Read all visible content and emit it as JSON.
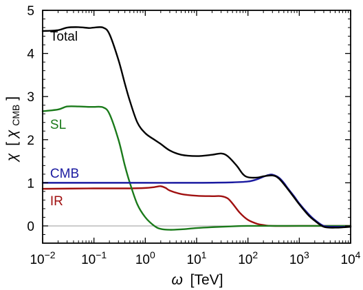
{
  "chart_data": {
    "type": "line",
    "title": "",
    "xlabel_symbol": "ω",
    "xlabel_unit": "[TeV]",
    "ylabel_symbol": "χ",
    "ylabel_unit_open": "[",
    "ylabel_unit_symbol": "χ",
    "ylabel_unit_sub": "CMB",
    "ylabel_unit_close": "]",
    "x_scale": "log",
    "xlim": [
      0.01,
      10000
    ],
    "ylim": [
      -0.4,
      5
    ],
    "x_ticks": [
      {
        "value": 0.01,
        "base": "10",
        "exp": "−2"
      },
      {
        "value": 0.1,
        "base": "10",
        "exp": "−1"
      },
      {
        "value": 1,
        "base": "10",
        "exp": "0"
      },
      {
        "value": 10,
        "base": "10",
        "exp": "1"
      },
      {
        "value": 100,
        "base": "10",
        "exp": "2"
      },
      {
        "value": 1000,
        "base": "10",
        "exp": "3"
      },
      {
        "value": 10000,
        "base": "10",
        "exp": "4"
      }
    ],
    "y_ticks": [
      {
        "value": 0,
        "label": "0"
      },
      {
        "value": 1,
        "label": "1"
      },
      {
        "value": 2,
        "label": "2"
      },
      {
        "value": 3,
        "label": "3"
      },
      {
        "value": 4,
        "label": "4"
      },
      {
        "value": 5,
        "label": "5"
      }
    ],
    "zero_line": true,
    "grid": false,
    "series": [
      {
        "name": "Total",
        "color": "#000000",
        "label_pos": {
          "x": 0.014,
          "y": 4.3
        },
        "x": [
          0.01,
          0.02,
          0.03,
          0.05,
          0.08,
          0.1,
          0.15,
          0.2,
          0.3,
          0.4,
          0.5,
          0.7,
          1,
          1.5,
          2,
          3,
          5,
          10,
          20,
          30,
          40,
          60,
          80,
          100,
          150,
          200,
          300,
          400,
          600,
          1000,
          1500,
          2000,
          3000,
          5000,
          10000
        ],
        "y": [
          4.52,
          4.54,
          4.6,
          4.61,
          4.59,
          4.6,
          4.6,
          4.45,
          3.85,
          3.3,
          2.9,
          2.4,
          2.15,
          2.0,
          1.9,
          1.75,
          1.65,
          1.62,
          1.65,
          1.68,
          1.62,
          1.4,
          1.2,
          1.13,
          1.12,
          1.15,
          1.17,
          1.1,
          0.85,
          0.5,
          0.25,
          0.12,
          -0.02,
          -0.04,
          -0.02
        ]
      },
      {
        "name": "SL",
        "color": "#1a7a1a",
        "label_pos": {
          "x": 0.014,
          "y": 2.25
        },
        "x": [
          0.01,
          0.02,
          0.03,
          0.05,
          0.08,
          0.1,
          0.15,
          0.2,
          0.3,
          0.4,
          0.5,
          0.7,
          1,
          1.5,
          2,
          3,
          5,
          10,
          20,
          50,
          100,
          1000,
          10000
        ],
        "y": [
          2.66,
          2.7,
          2.77,
          2.77,
          2.76,
          2.76,
          2.75,
          2.6,
          2.0,
          1.4,
          1.0,
          0.5,
          0.2,
          0.0,
          -0.07,
          -0.09,
          -0.08,
          -0.05,
          -0.03,
          -0.01,
          0.0,
          0.0,
          0.0
        ]
      },
      {
        "name": "CMB",
        "color": "#1a1aa0",
        "label_pos": {
          "x": 0.014,
          "y": 1.12
        },
        "x": [
          0.01,
          0.1,
          1,
          10,
          50,
          100,
          150,
          200,
          250,
          300,
          400,
          500,
          600,
          800,
          1000,
          1500,
          2000,
          3000,
          5000,
          10000
        ],
        "y": [
          1.0,
          1.0,
          1.0,
          1.0,
          1.01,
          1.03,
          1.08,
          1.14,
          1.18,
          1.19,
          1.12,
          1.0,
          0.87,
          0.68,
          0.52,
          0.28,
          0.14,
          0.0,
          -0.02,
          -0.02
        ]
      },
      {
        "name": "IR",
        "color": "#a01010",
        "label_pos": {
          "x": 0.014,
          "y": 0.48
        },
        "x": [
          0.01,
          0.1,
          0.5,
          1,
          1.5,
          2,
          2.5,
          3,
          5,
          10,
          20,
          30,
          40,
          50,
          70,
          100,
          150,
          200,
          300,
          1000,
          10000
        ],
        "y": [
          0.86,
          0.87,
          0.87,
          0.88,
          0.9,
          0.92,
          0.88,
          0.82,
          0.74,
          0.7,
          0.69,
          0.69,
          0.64,
          0.52,
          0.3,
          0.14,
          0.05,
          0.02,
          0.0,
          0.0,
          0.0
        ]
      }
    ]
  }
}
